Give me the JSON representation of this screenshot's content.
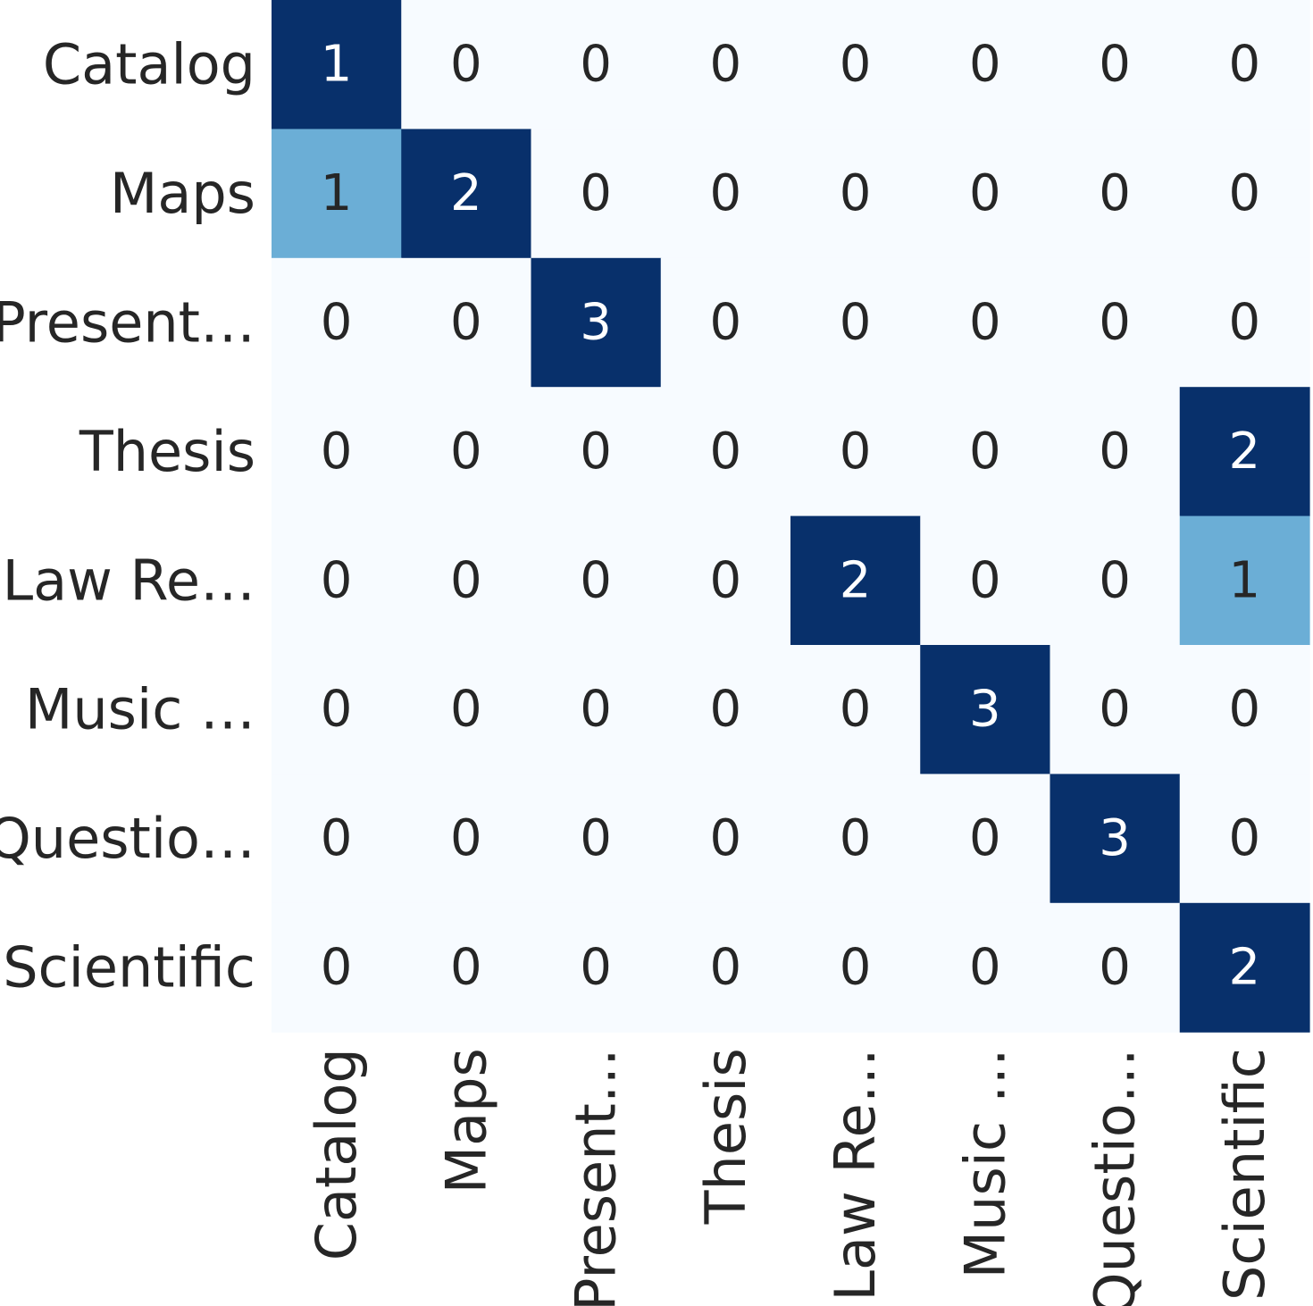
{
  "chart_data": {
    "type": "heatmap",
    "rows": [
      "Catalog",
      "Maps",
      "Present…",
      "Thesis",
      "Law Re…",
      "Music …",
      "Questio…",
      "Scientific"
    ],
    "columns": [
      "Catalog",
      "Maps",
      "Present…",
      "Thesis",
      "Law Re…",
      "Music …",
      "Questio…",
      "Scientific"
    ],
    "values": [
      [
        1,
        0,
        0,
        0,
        0,
        0,
        0,
        0
      ],
      [
        1,
        2,
        0,
        0,
        0,
        0,
        0,
        0
      ],
      [
        0,
        0,
        3,
        0,
        0,
        0,
        0,
        0
      ],
      [
        0,
        0,
        0,
        0,
        0,
        0,
        0,
        2
      ],
      [
        0,
        0,
        0,
        0,
        2,
        0,
        0,
        1
      ],
      [
        0,
        0,
        0,
        0,
        0,
        3,
        0,
        0
      ],
      [
        0,
        0,
        0,
        0,
        0,
        0,
        3,
        0
      ],
      [
        0,
        0,
        0,
        0,
        0,
        0,
        0,
        2
      ]
    ],
    "row_max_normalized": true,
    "colormap": "Blues",
    "colors": {
      "low": "#f7fbff",
      "mid_low": "#abd0e6",
      "mid_high": "#3787c0",
      "high": "#08306b",
      "text_dark": "#262626",
      "text_light": "#ffffff"
    },
    "colorbar": false,
    "title": "",
    "xlabel": "",
    "ylabel": ""
  }
}
